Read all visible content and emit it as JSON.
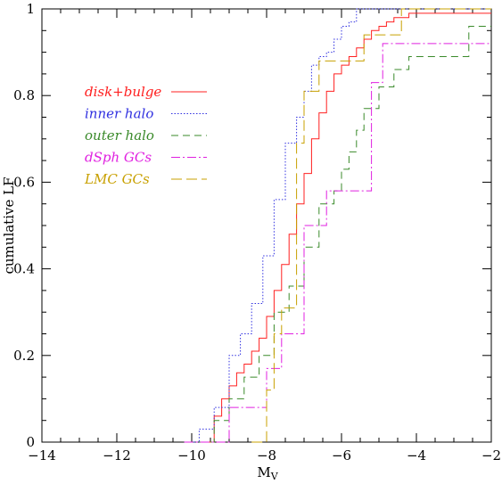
{
  "chart_data": {
    "type": "line",
    "title": "",
    "xlabel": "M",
    "xlabel_sub": "V",
    "ylabel": "cumulative LF",
    "xlim": [
      -14,
      -2
    ],
    "ylim": [
      0,
      1
    ],
    "x_ticks": [
      -14,
      -12,
      -10,
      -8,
      -6,
      -4,
      -2
    ],
    "x_tick_labels": [
      "−14",
      "−12",
      "−10",
      "−8",
      "−6",
      "−4",
      "−2"
    ],
    "y_ticks": [
      0,
      0.2,
      0.4,
      0.6,
      0.8,
      1
    ],
    "y_tick_labels": [
      "0",
      "0.2",
      "0.4",
      "0.6",
      "0.8",
      "1"
    ],
    "grid": false,
    "legend_position": "upper-left",
    "series": [
      {
        "name": "disk+bulge",
        "color": "#ff2020",
        "dash": "solid",
        "x": [
          -9.6,
          -9.4,
          -9.2,
          -9.0,
          -8.8,
          -8.6,
          -8.4,
          -8.2,
          -8.0,
          -7.8,
          -7.6,
          -7.4,
          -7.2,
          -7.0,
          -6.8,
          -6.6,
          -6.4,
          -6.2,
          -6.0,
          -5.8,
          -5.6,
          -5.4,
          -5.2,
          -5.0,
          -4.8,
          -4.6,
          -4.4,
          -4.2,
          -2.0
        ],
        "y": [
          0.0,
          0.06,
          0.1,
          0.13,
          0.16,
          0.18,
          0.21,
          0.24,
          0.29,
          0.35,
          0.41,
          0.48,
          0.55,
          0.62,
          0.7,
          0.76,
          0.81,
          0.85,
          0.87,
          0.89,
          0.91,
          0.93,
          0.95,
          0.96,
          0.97,
          0.98,
          0.98,
          0.99,
          0.99
        ]
      },
      {
        "name": "inner halo",
        "color": "#3030e0",
        "dash": "dotted",
        "x": [
          -10.2,
          -9.8,
          -9.4,
          -9.0,
          -8.7,
          -8.4,
          -8.1,
          -7.8,
          -7.5,
          -7.2,
          -7.0,
          -6.8,
          -6.6,
          -6.4,
          -6.2,
          -6.0,
          -5.8,
          -5.6,
          -5.2,
          -2.0
        ],
        "y": [
          0.0,
          0.03,
          0.08,
          0.2,
          0.25,
          0.32,
          0.43,
          0.56,
          0.69,
          0.75,
          0.81,
          0.87,
          0.89,
          0.9,
          0.93,
          0.96,
          0.97,
          1.0,
          1.0,
          1.0
        ]
      },
      {
        "name": "outer halo",
        "color": "#3a8a2a",
        "dash": "dashed",
        "x": [
          -9.8,
          -9.4,
          -9.0,
          -8.6,
          -8.2,
          -7.8,
          -7.4,
          -7.0,
          -6.6,
          -6.2,
          -6.0,
          -5.8,
          -5.6,
          -5.4,
          -5.0,
          -4.6,
          -4.2,
          -2.6,
          -2.0
        ],
        "y": [
          0.0,
          0.05,
          0.1,
          0.15,
          0.2,
          0.3,
          0.36,
          0.45,
          0.55,
          0.58,
          0.63,
          0.67,
          0.72,
          0.77,
          0.82,
          0.86,
          0.89,
          0.96,
          0.96
        ]
      },
      {
        "name": "dSph GCs",
        "color": "#e020e0",
        "dash": "dashdot",
        "x": [
          -10.2,
          -9.0,
          -8.0,
          -7.6,
          -7.0,
          -6.4,
          -6.0,
          -5.2,
          -4.9,
          -2.0
        ],
        "y": [
          0.0,
          0.08,
          0.17,
          0.25,
          0.5,
          0.58,
          0.58,
          0.83,
          0.92,
          0.92
        ]
      },
      {
        "name": "LMC GCs",
        "color": "#c8a000",
        "dash": "longdash",
        "x": [
          -8.4,
          -8.0,
          -7.8,
          -7.6,
          -7.2,
          -7.0,
          -6.6,
          -6.0,
          -5.4,
          -4.8,
          -4.4,
          -2.0
        ],
        "y": [
          0.0,
          0.12,
          0.25,
          0.31,
          0.69,
          0.81,
          0.88,
          0.88,
          0.94,
          0.94,
          1.0,
          1.0
        ]
      }
    ]
  }
}
